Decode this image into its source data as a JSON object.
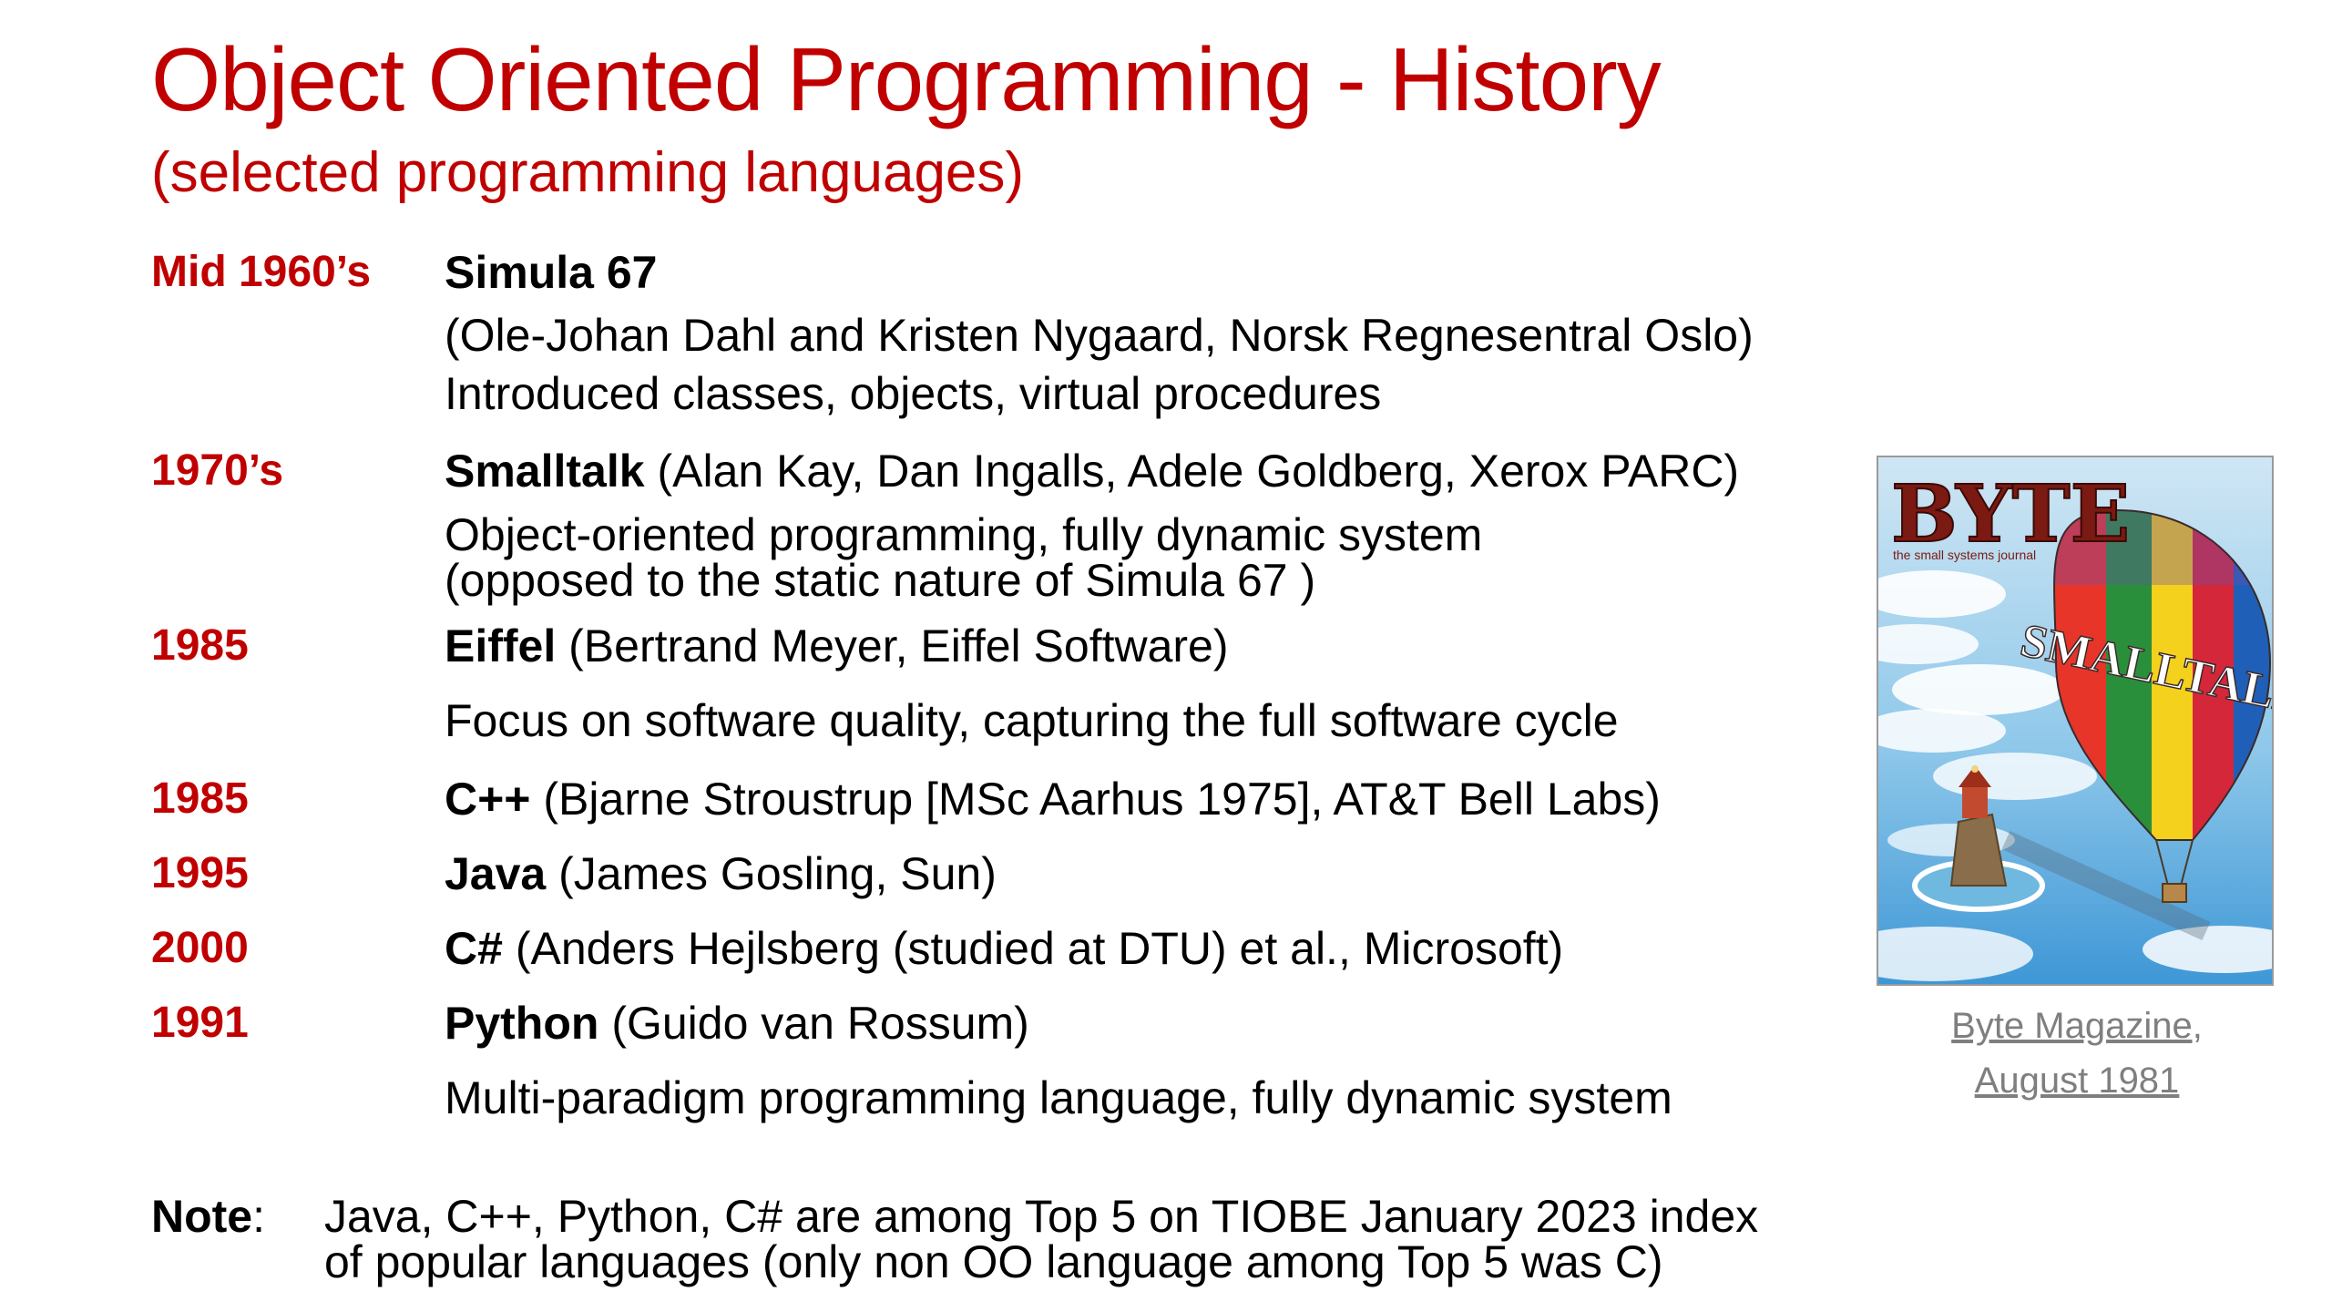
{
  "title": "Object Oriented Programming - History",
  "subtitle": "(selected programming languages)",
  "entries": [
    {
      "year": "Mid 1960’s",
      "lang": "Simula 67",
      "rest": "",
      "details": [
        "(Ole-Johan Dahl and Kristen Nygaard, Norsk Regnesentral Oslo)",
        "Introduced classes, objects, virtual procedures"
      ]
    },
    {
      "year": "1970’s",
      "lang": "Smalltalk",
      "rest": " (Alan Kay, Dan Ingalls, Adele Goldberg, Xerox PARC)",
      "details": [
        "Object-oriented programming, fully dynamic system",
        "(opposed to the static nature of Simula 67 )"
      ]
    },
    {
      "year": "1985",
      "lang": "Eiffel",
      "rest": " (Bertrand Meyer, Eiffel Software)",
      "details": [
        "Focus on software quality, capturing the full software cycle"
      ]
    },
    {
      "year": "1985",
      "lang": "C++",
      "rest": " (Bjarne Stroustrup [MSc Aarhus 1975], AT&T Bell Labs)",
      "details": []
    },
    {
      "year": "1995",
      "lang": "Java",
      "rest": " (James Gosling, Sun)",
      "details": []
    },
    {
      "year": "2000",
      "lang": "C#",
      "rest": " (Anders Hejlsberg (studied at DTU) et al., Microsoft)",
      "details": []
    },
    {
      "year": "1991",
      "lang": "Python",
      "rest": " (Guido van Rossum)",
      "details": [
        "Multi-paradigm programming language, fully dynamic system"
      ]
    }
  ],
  "note": {
    "label": "Note",
    "colon": ":",
    "lines": [
      "Java, C++, Python, C# are among Top 5 on TIOBE January 2023 index",
      "of popular languages (only non OO language among Top 5 was C)"
    ]
  },
  "image": {
    "masthead": "BYTE",
    "tagline": "the small systems journal",
    "balloon_text": "SMALLTALK",
    "caption_line1": "Byte Magazine,",
    "caption_line2": "August 1981"
  }
}
